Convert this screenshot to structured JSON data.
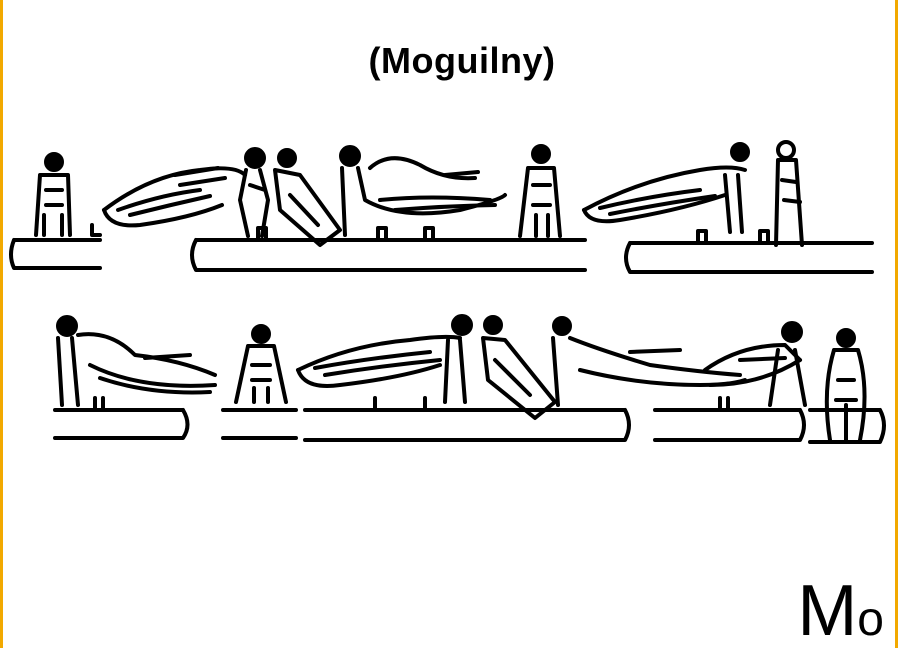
{
  "title": "(Moguilny)",
  "symbol_main": "M",
  "symbol_sub": "o",
  "colors": {
    "border": "#f2a900",
    "ink": "#000000",
    "paper": "#ffffff"
  }
}
